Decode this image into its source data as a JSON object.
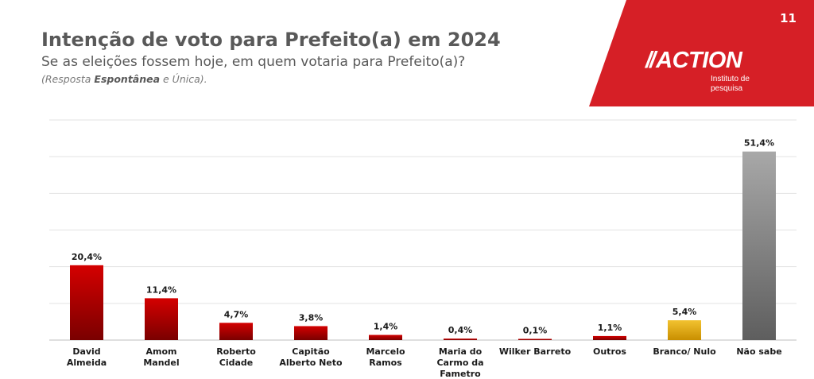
{
  "header": {
    "title": "Intenção de voto para Prefeito(a) em 2024",
    "subtitle": "Se as eleições fossem hoje, em quem votaria para Prefeito(a)?",
    "note_prefix": "(Resposta ",
    "note_bold": "Espontânea",
    "note_suffix": " e Única)."
  },
  "brand": {
    "page_number": "11",
    "slashes": "//",
    "logo_text": "ACTION",
    "logo_sub_line1": "Instituto de",
    "logo_sub_line2": "pesquisa",
    "banner_color": "#d61f26"
  },
  "chart_data": {
    "type": "bar",
    "ylim": [
      0,
      60
    ],
    "grid": true,
    "categories": [
      [
        "David",
        "Almeida"
      ],
      [
        "Amom",
        "Mandel"
      ],
      [
        "Roberto",
        "Cidade"
      ],
      [
        "Capitão",
        "Alberto Neto"
      ],
      [
        "Marcelo",
        "Ramos"
      ],
      [
        "Maria do",
        "Carmo da",
        "Fametro"
      ],
      [
        "Wilker Barreto"
      ],
      [
        "Outros"
      ],
      [
        "Branco/ Nulo"
      ],
      [
        "Não sabe"
      ]
    ],
    "values": [
      20.4,
      11.4,
      4.7,
      3.8,
      1.4,
      0.4,
      0.1,
      1.1,
      5.4,
      51.4
    ],
    "data_labels": [
      "20,4%",
      "11,4%",
      "4,7%",
      "3,8%",
      "1,4%",
      "0,4%",
      "0,1%",
      "1,1%",
      "5,4%",
      "51,4%"
    ],
    "colors": {
      "candidate": "#c00000",
      "blank_null": "#f0b400",
      "dont_know": "#8c8c8c"
    },
    "bar_color_keys": [
      "candidate",
      "candidate",
      "candidate",
      "candidate",
      "candidate",
      "candidate",
      "candidate",
      "candidate",
      "blank_null",
      "dont_know"
    ]
  }
}
